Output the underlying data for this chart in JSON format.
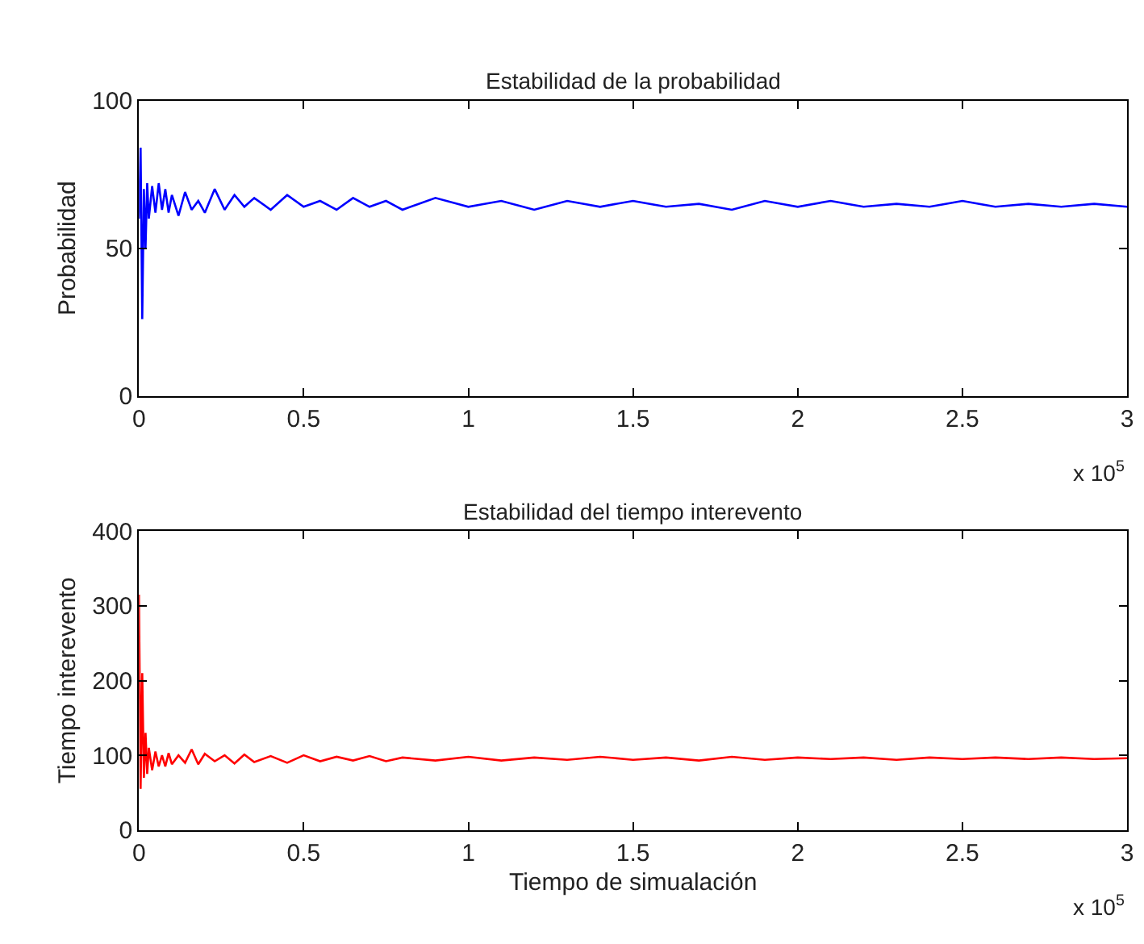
{
  "chart_data": [
    {
      "type": "line",
      "title": "Estabilidad de la probabilidad",
      "ylabel": "Probabilidad",
      "annotations": [
        "x 10$^{5}$"
      ],
      "x": [
        0,
        0.005,
        0.01,
        0.015,
        0.02,
        0.025,
        0.03,
        0.04,
        0.05,
        0.06,
        0.07,
        0.08,
        0.09,
        0.1,
        0.12,
        0.14,
        0.16,
        0.18,
        0.2,
        0.23,
        0.26,
        0.29,
        0.32,
        0.35,
        0.4,
        0.45,
        0.5,
        0.55,
        0.6,
        0.65,
        0.7,
        0.75,
        0.8,
        0.9,
        1.0,
        1.1,
        1.2,
        1.3,
        1.4,
        1.5,
        1.6,
        1.7,
        1.8,
        1.9,
        2.0,
        2.1,
        2.2,
        2.3,
        2.4,
        2.5,
        2.6,
        2.7,
        2.8,
        2.9,
        3.0
      ],
      "series": [
        {
          "color": "#0000ff",
          "values": [
            60,
            84,
            26,
            70,
            50,
            72,
            60,
            71,
            62,
            72,
            63,
            70,
            62,
            68,
            61,
            69,
            63,
            66,
            62,
            70,
            63,
            68,
            64,
            67,
            63,
            68,
            64,
            66,
            63,
            67,
            64,
            66,
            63,
            67,
            64,
            66,
            63,
            66,
            64,
            66,
            64,
            65,
            63,
            66,
            64,
            66,
            64,
            65,
            64,
            66,
            64,
            65,
            64,
            65,
            64
          ]
        }
      ],
      "xlim": [
        0,
        3
      ],
      "xticks": [
        0,
        0.5,
        1,
        1.5,
        2,
        2.5,
        3
      ],
      "ylim": [
        0,
        100
      ],
      "yticks": [
        0,
        50,
        100
      ],
      "marker": "none",
      "line_style": "solid"
    },
    {
      "type": "line",
      "title": "Estabilidad del tiempo interevento",
      "xlabel": "Tiempo de simualación",
      "ylabel": "Tiempo interevento",
      "annotations": [
        "x 10$^{5}$"
      ],
      "x": [
        0,
        0.005,
        0.01,
        0.015,
        0.02,
        0.025,
        0.03,
        0.04,
        0.05,
        0.06,
        0.07,
        0.08,
        0.09,
        0.1,
        0.12,
        0.14,
        0.16,
        0.18,
        0.2,
        0.23,
        0.26,
        0.29,
        0.32,
        0.35,
        0.4,
        0.45,
        0.5,
        0.55,
        0.6,
        0.65,
        0.7,
        0.75,
        0.8,
        0.9,
        1.0,
        1.1,
        1.2,
        1.3,
        1.4,
        1.5,
        1.6,
        1.7,
        1.8,
        1.9,
        2.0,
        2.1,
        2.2,
        2.3,
        2.4,
        2.5,
        2.6,
        2.7,
        2.8,
        2.9,
        3.0
      ],
      "series": [
        {
          "color": "#ff0000",
          "values": [
            315,
            55,
            210,
            70,
            130,
            75,
            110,
            80,
            105,
            85,
            100,
            85,
            103,
            88,
            100,
            90,
            108,
            88,
            102,
            92,
            100,
            89,
            101,
            91,
            99,
            90,
            100,
            92,
            98,
            93,
            99,
            92,
            97,
            93,
            98,
            93,
            97,
            94,
            98,
            94,
            97,
            93,
            98,
            94,
            97,
            95,
            97,
            94,
            97,
            95,
            97,
            95,
            97,
            95,
            96
          ]
        }
      ],
      "xlim": [
        0,
        3
      ],
      "xticks": [
        0,
        0.5,
        1,
        1.5,
        2,
        2.5,
        3
      ],
      "ylim": [
        0,
        400
      ],
      "yticks": [
        0,
        100,
        200,
        300,
        400
      ],
      "marker": "none",
      "line_style": "solid"
    }
  ]
}
